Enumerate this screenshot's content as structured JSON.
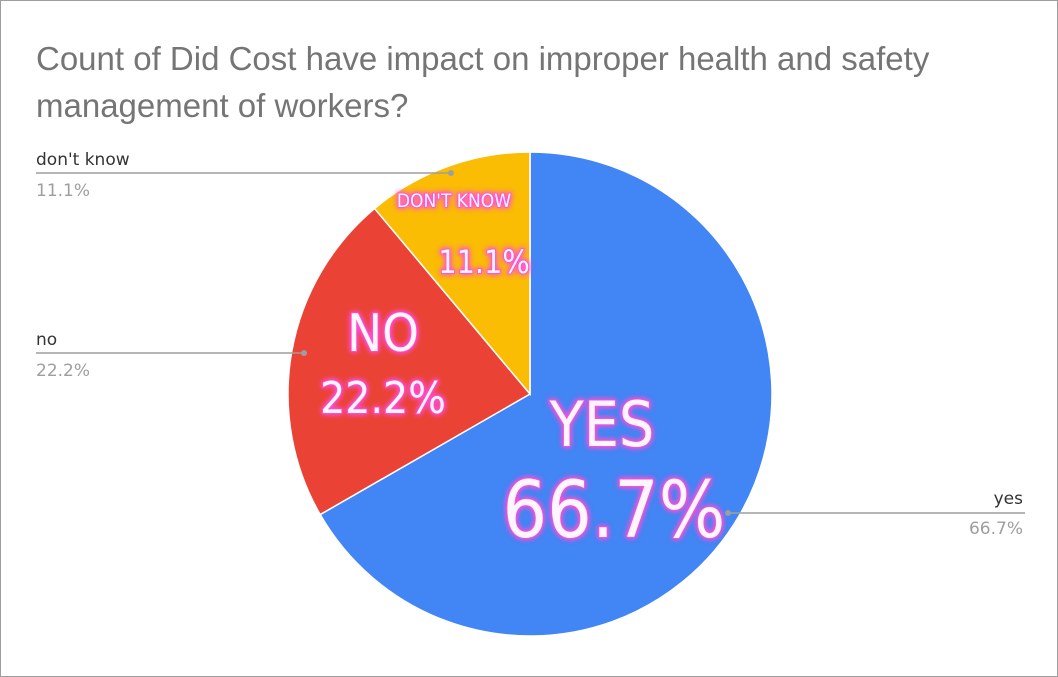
{
  "chart_data": {
    "type": "pie",
    "title": "Count of Did Cost have impact on improper health and safety management of workers?",
    "start_angle_deg": 0,
    "direction": "clockwise",
    "slices": [
      {
        "key": "yes",
        "label": "yes",
        "value": 66.7,
        "display": "66.7%",
        "color": "#4285f4",
        "overlay_label": "YES",
        "overlay_value": "66.7%",
        "callout_side": "right"
      },
      {
        "key": "no",
        "label": "no",
        "value": 22.2,
        "display": "22.2%",
        "color": "#ea4335",
        "overlay_label": "NO",
        "overlay_value": "22.2%",
        "callout_side": "left"
      },
      {
        "key": "dont-know",
        "label": "don't know",
        "value": 11.1,
        "display": "11.1%",
        "color": "#fbbc04",
        "overlay_label": "DON'T KNOW",
        "overlay_value": "11.1%",
        "callout_side": "left"
      }
    ],
    "overlay_style": {
      "text_color": "#fff5ff",
      "glow_color": "#ff4fd8"
    },
    "callout_line_color": "#9e9e9e"
  }
}
